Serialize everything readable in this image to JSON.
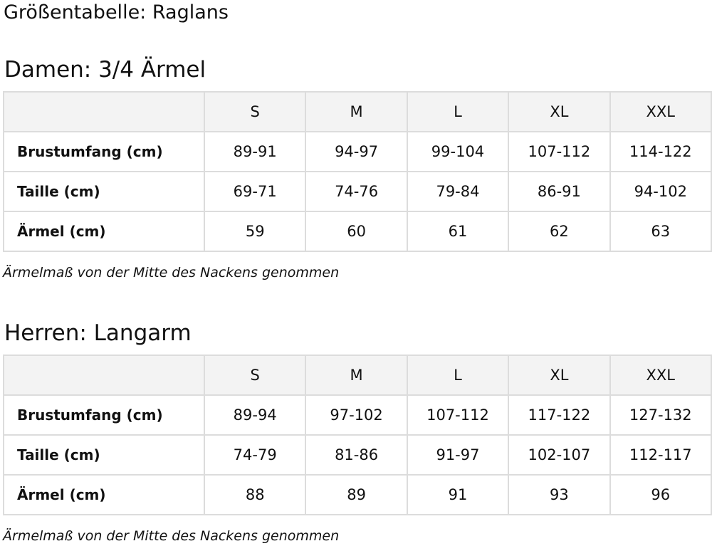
{
  "title": "Größentabelle: Raglans",
  "sections": [
    {
      "heading": "Damen: 3/4 Ärmel",
      "sizes": [
        "S",
        "M",
        "L",
        "XL",
        "XXL"
      ],
      "rows": [
        {
          "label": "Brustumfang (cm)",
          "values": [
            "89-91",
            "94-97",
            "99-104",
            "107-112",
            "114-122"
          ]
        },
        {
          "label": "Taille (cm)",
          "values": [
            "69-71",
            "74-76",
            "79-84",
            "86-91",
            "94-102"
          ]
        },
        {
          "label": "Ärmel (cm)",
          "values": [
            "59",
            "60",
            "61",
            "62",
            "63"
          ]
        }
      ],
      "note": "Ärmelmaß von der Mitte des Nackens genommen"
    },
    {
      "heading": "Herren: Langarm",
      "sizes": [
        "S",
        "M",
        "L",
        "XL",
        "XXL"
      ],
      "rows": [
        {
          "label": "Brustumfang (cm)",
          "values": [
            "89-94",
            "97-102",
            "107-112",
            "117-122",
            "127-132"
          ]
        },
        {
          "label": "Taille (cm)",
          "values": [
            "74-79",
            "81-86",
            "91-97",
            "102-107",
            "112-117"
          ]
        },
        {
          "label": "Ärmel (cm)",
          "values": [
            "88",
            "89",
            "91",
            "93",
            "96"
          ]
        }
      ],
      "note": "Ärmelmaß von der Mitte des Nackens genommen"
    }
  ]
}
